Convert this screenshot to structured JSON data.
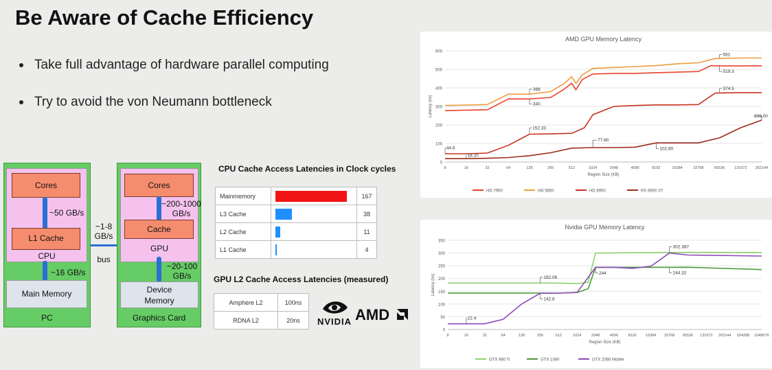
{
  "title": "Be Aware of Cache Efficiency",
  "bullets": [
    "Take full advantage of hardware parallel computing",
    "Try to avoid the von Neumann bottleneck"
  ],
  "diagram": {
    "pc": {
      "cores": "Cores",
      "bw_cores_l1": "~50 GB/s",
      "l1": "L1 Cache",
      "cpu": "CPU",
      "bw_cpu_mem": "~16 GB/s",
      "mem": "Main Memory",
      "label": "PC"
    },
    "bus": {
      "bw": "~1-8\nGB/s",
      "label": "bus"
    },
    "gpu": {
      "cores": "Cores",
      "bw_cores_cache": "~200-1000\nGB/s",
      "cache": "Cache",
      "gpu": "GPU",
      "bw_gpu_mem": "~20-100\nGB/s",
      "mem": "Device\nMemory",
      "label": "Graphics Card"
    }
  },
  "cpu_cache_title": "CPU  Cache Access Latencies in Clock cycles",
  "cpu_cache": [
    {
      "name": "Mainmemory",
      "value": 167,
      "color": "#f01414"
    },
    {
      "name": "L3 Cache",
      "value": 38,
      "color": "#1e90ff"
    },
    {
      "name": "L2 Cache",
      "value": 11,
      "color": "#1e90ff"
    },
    {
      "name": "L1 Cache",
      "value": 4,
      "color": "#1e90ff"
    }
  ],
  "gpu_l2_title": "GPU L2 Cache Access Latencies (measured)",
  "gpu_l2": [
    {
      "name": "Amphere L2",
      "value": "100ns"
    },
    {
      "name": "RDNA L2",
      "value": "20ns"
    }
  ],
  "logos": {
    "nvidia": "NVIDIA",
    "amd": "AMD"
  },
  "chart_data": [
    {
      "type": "line",
      "title": "AMD GPU Memory Latency",
      "xlabel": "Region Size (KB)",
      "ylabel": "Latency (ns)",
      "ylim": [
        0,
        600
      ],
      "yticks": [
        0,
        100,
        200,
        300,
        400,
        500,
        600
      ],
      "categories": [
        "8",
        "16",
        "32",
        "64",
        "128",
        "256",
        "512",
        "1024",
        "2048",
        "4096",
        "8192",
        "16384",
        "32768",
        "65536",
        "131072",
        "262144"
      ],
      "series": [
        {
          "name": "HD 7950",
          "color": "#e8432a",
          "points": [
            [
              0,
              277
            ],
            [
              1,
              280
            ],
            [
              2,
              282
            ],
            [
              3,
              340
            ],
            [
              4,
              340
            ],
            [
              5,
              348
            ],
            [
              5.6,
              390
            ],
            [
              6,
              425
            ],
            [
              6.2,
              390
            ],
            [
              6.5,
              445
            ],
            [
              7,
              475
            ],
            [
              8,
              478
            ],
            [
              9,
              478
            ],
            [
              10,
              482
            ],
            [
              11,
              485
            ],
            [
              12,
              488
            ],
            [
              12.6,
              520
            ],
            [
              13,
              519
            ],
            [
              14,
              518
            ],
            [
              15,
              519.3
            ]
          ]
        },
        {
          "name": "HD 5850",
          "color": "#ee9b3c",
          "points": [
            [
              0,
              305
            ],
            [
              1,
              307
            ],
            [
              2,
              310
            ],
            [
              3,
              366
            ],
            [
              4,
              366
            ],
            [
              5,
              380
            ],
            [
              5.6,
              420
            ],
            [
              6,
              460
            ],
            [
              6.2,
              425
            ],
            [
              6.5,
              470
            ],
            [
              7,
              505
            ],
            [
              8,
              510
            ],
            [
              9,
              515
            ],
            [
              10,
              520
            ],
            [
              11,
              530
            ],
            [
              12,
              535
            ],
            [
              12.8,
              558
            ],
            [
              14,
              561
            ],
            [
              15,
              561
            ]
          ]
        },
        {
          "name": "HD 6950",
          "color": "#c8321f",
          "points": [
            [
              0,
              44.6
            ],
            [
              1,
              44.6
            ],
            [
              2,
              48
            ],
            [
              3,
              90
            ],
            [
              4,
              150
            ],
            [
              5,
              152.33
            ],
            [
              6,
              155
            ],
            [
              6.6,
              185
            ],
            [
              7,
              255
            ],
            [
              8,
              300
            ],
            [
              9,
              305
            ],
            [
              10,
              308
            ],
            [
              11,
              308
            ],
            [
              12,
              310
            ],
            [
              12.8,
              372
            ],
            [
              14,
              374.5
            ],
            [
              15,
              374.5
            ]
          ]
        },
        {
          "name": "RX 6900 XT",
          "color": "#9a2a1d",
          "points": [
            [
              0,
              18.2
            ],
            [
              1,
              18.2
            ],
            [
              2,
              20
            ],
            [
              3,
              24
            ],
            [
              4,
              34
            ],
            [
              5,
              50
            ],
            [
              6,
              75
            ],
            [
              7,
              77.8
            ],
            [
              8,
              77.8
            ],
            [
              9,
              80
            ],
            [
              10,
              102.8
            ],
            [
              11,
              102.8
            ],
            [
              12,
              102.8
            ],
            [
              13,
              130
            ],
            [
              14,
              185
            ],
            [
              15,
              226
            ]
          ]
        }
      ],
      "annotations": [
        "561",
        "519.3",
        "374.5",
        "366",
        "340",
        "152.33",
        "44.6",
        "18.20",
        "77.80",
        "102.80",
        "226.00"
      ]
    },
    {
      "type": "line",
      "title": "Nvidia GPU Memory Latency",
      "xlabel": "Region Size (KB)",
      "ylabel": "Latency (ns)",
      "ylim": [
        0,
        350
      ],
      "yticks": [
        0,
        50,
        100,
        150,
        200,
        250,
        300,
        350
      ],
      "categories": [
        "8",
        "16",
        "32",
        "64",
        "128",
        "256",
        "512",
        "1024",
        "2048",
        "4096",
        "8192",
        "16384",
        "32768",
        "65536",
        "131072",
        "262144",
        "524288",
        "1048576"
      ],
      "series": [
        {
          "name": "GTX 980 Ti",
          "color": "#8fd16b",
          "points": [
            [
              0,
              182
            ],
            [
              6,
              182.06
            ],
            [
              7,
              180
            ],
            [
              7.6,
              185
            ],
            [
              8,
              300
            ],
            [
              12,
              302
            ],
            [
              13,
              302.387
            ],
            [
              17,
              302
            ]
          ]
        },
        {
          "name": "GTX 1080",
          "color": "#4a9a3a",
          "points": [
            [
              0,
              143
            ],
            [
              6,
              142.8
            ],
            [
              7,
              145
            ],
            [
              7.6,
              160
            ],
            [
              8,
              244
            ],
            [
              12,
              244
            ],
            [
              13,
              244.32
            ],
            [
              17,
              235
            ]
          ]
        },
        {
          "name": "GTX 2060 Mobile",
          "color": "#8a4ab8",
          "points": [
            [
              0,
              22.4
            ],
            [
              2,
              22.4
            ],
            [
              3,
              40
            ],
            [
              4,
              100
            ],
            [
              5,
              142
            ],
            [
              6,
              142.8
            ],
            [
              7,
              145
            ],
            [
              8,
              244
            ],
            [
              9,
              244
            ],
            [
              10,
              240
            ],
            [
              11,
              248
            ],
            [
              12,
              300
            ],
            [
              13,
              292
            ],
            [
              17,
              288
            ]
          ]
        }
      ],
      "annotations": [
        "302.387",
        "182.06",
        "244",
        "244.32",
        "142.8",
        "22.4"
      ]
    }
  ]
}
